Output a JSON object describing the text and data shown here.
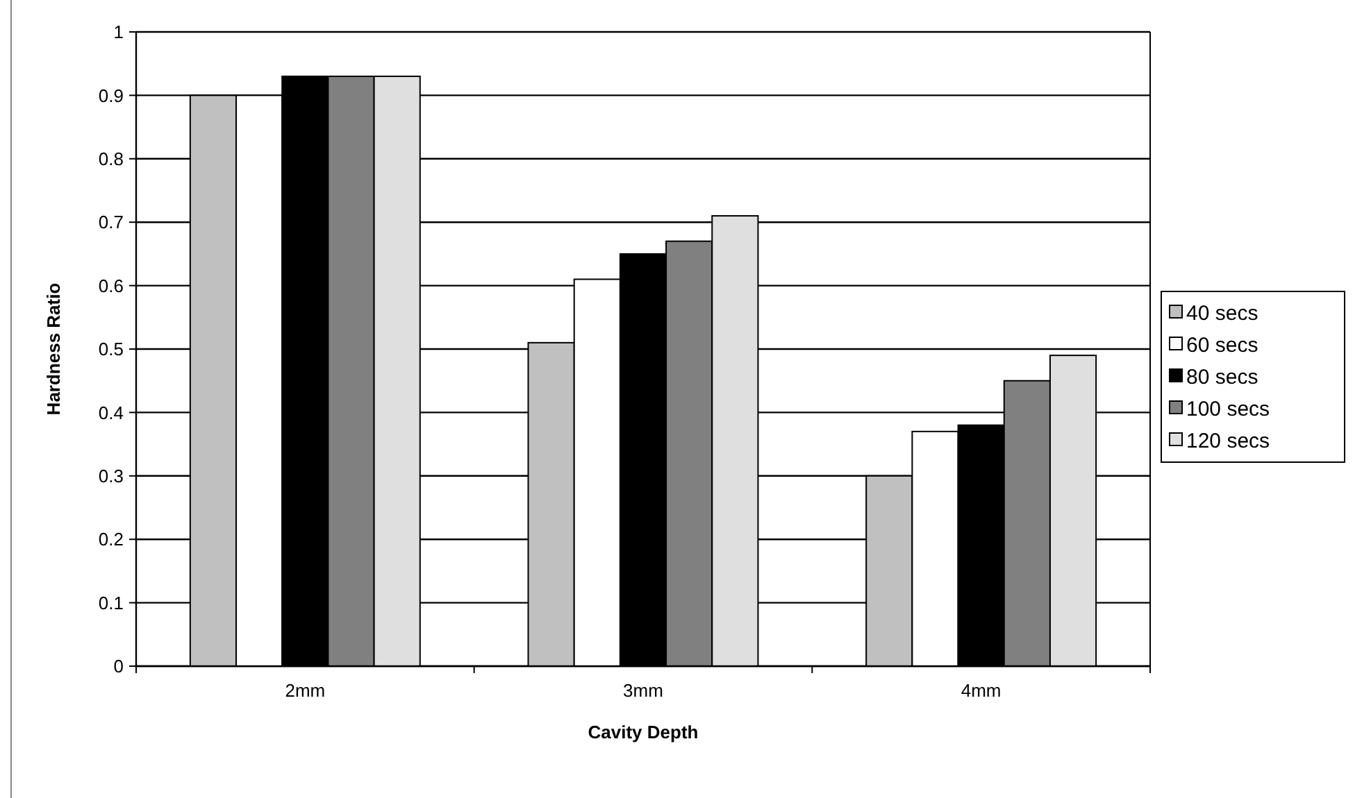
{
  "chart_data": {
    "type": "bar",
    "xlabel": "Cavity Depth",
    "ylabel": "Hardness Ratio",
    "categories": [
      "2mm",
      "3mm",
      "4mm"
    ],
    "series": [
      {
        "name": "40 secs",
        "color": "#c0c0c0",
        "values": [
          0.9,
          0.51,
          0.3
        ]
      },
      {
        "name": "60 secs",
        "color": "#ffffff",
        "values": [
          0.9,
          0.61,
          0.37
        ]
      },
      {
        "name": "80 secs",
        "color": "#000000",
        "values": [
          0.93,
          0.65,
          0.38
        ]
      },
      {
        "name": "100 secs",
        "color": "#808080",
        "values": [
          0.93,
          0.67,
          0.45
        ]
      },
      {
        "name": "120 secs",
        "color": "#dfdfdf",
        "values": [
          0.93,
          0.71,
          0.49
        ]
      }
    ],
    "ylim": [
      0,
      1
    ],
    "yticks": [
      0,
      0.1,
      0.2,
      0.3,
      0.4,
      0.5,
      0.6,
      0.7,
      0.8,
      0.9,
      1
    ],
    "grid": "y",
    "legend": "right"
  }
}
